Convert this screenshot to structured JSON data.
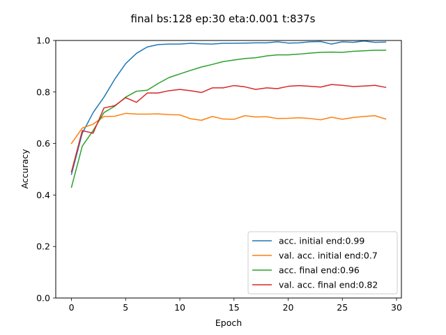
{
  "chart_data": {
    "type": "line",
    "title": "final bs:128 ep:30 eta:0.001 t:837s",
    "xlabel": "Epoch",
    "ylabel": "Accuracy",
    "xlim": [
      -1.45,
      30.45
    ],
    "ylim": [
      0.0,
      1.0
    ],
    "xticks": [
      0,
      5,
      10,
      15,
      20,
      25,
      30
    ],
    "yticks": [
      0.0,
      0.2,
      0.4,
      0.6,
      0.8,
      1.0
    ],
    "xtick_labels": [
      "0",
      "5",
      "10",
      "15",
      "20",
      "25",
      "30"
    ],
    "ytick_labels": [
      "0.0",
      "0.2",
      "0.4",
      "0.6",
      "0.8",
      "1.0"
    ],
    "grid": false,
    "legend_position": "bottom-right",
    "x": [
      0,
      1,
      2,
      3,
      4,
      5,
      6,
      7,
      8,
      9,
      10,
      11,
      12,
      13,
      14,
      15,
      16,
      17,
      18,
      19,
      20,
      21,
      22,
      23,
      24,
      25,
      26,
      27,
      28,
      29
    ],
    "series": [
      {
        "name": "acc. initial  end:0.99",
        "color": "#1f77b4",
        "values": [
          0.48,
          0.64,
          0.72,
          0.78,
          0.85,
          0.91,
          0.95,
          0.975,
          0.984,
          0.986,
          0.986,
          0.989,
          0.987,
          0.986,
          0.989,
          0.989,
          0.99,
          0.991,
          0.991,
          0.995,
          0.99,
          0.991,
          0.995,
          0.996,
          0.986,
          0.995,
          0.993,
          0.998,
          0.993,
          0.994
        ]
      },
      {
        "name": "val. acc. initial  end:0.7",
        "color": "#ff7f0e",
        "values": [
          0.6,
          0.66,
          0.675,
          0.705,
          0.706,
          0.717,
          0.714,
          0.714,
          0.715,
          0.712,
          0.711,
          0.696,
          0.69,
          0.705,
          0.695,
          0.694,
          0.708,
          0.703,
          0.704,
          0.697,
          0.698,
          0.7,
          0.697,
          0.692,
          0.702,
          0.694,
          0.701,
          0.705,
          0.708,
          0.695
        ]
      },
      {
        "name": "acc. final  end:0.96",
        "color": "#2ca02c",
        "values": [
          0.43,
          0.59,
          0.65,
          0.72,
          0.745,
          0.78,
          0.803,
          0.807,
          0.833,
          0.856,
          0.87,
          0.884,
          0.897,
          0.907,
          0.918,
          0.924,
          0.93,
          0.933,
          0.94,
          0.944,
          0.944,
          0.947,
          0.951,
          0.954,
          0.955,
          0.954,
          0.958,
          0.96,
          0.962,
          0.962
        ]
      },
      {
        "name": "val. acc. final  end:0.82",
        "color": "#d62728",
        "values": [
          0.49,
          0.65,
          0.64,
          0.738,
          0.747,
          0.778,
          0.76,
          0.796,
          0.796,
          0.805,
          0.81,
          0.805,
          0.798,
          0.816,
          0.816,
          0.825,
          0.82,
          0.81,
          0.816,
          0.813,
          0.822,
          0.825,
          0.822,
          0.819,
          0.829,
          0.826,
          0.821,
          0.823,
          0.826,
          0.818
        ]
      }
    ]
  }
}
